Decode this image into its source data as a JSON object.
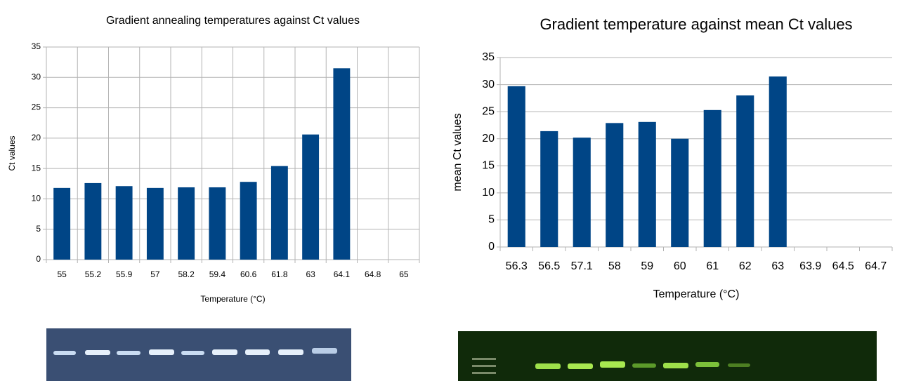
{
  "chart_data": [
    {
      "type": "bar",
      "title": "Gradient annealing temperatures against Ct values",
      "x_label": "Temperature (°C)",
      "y_label": "Ct values",
      "categories": [
        "55",
        "55.2",
        "55.9",
        "57",
        "58.2",
        "59.4",
        "60.6",
        "61.8",
        "63",
        "64.1",
        "64.8",
        "65"
      ],
      "values": [
        11.8,
        12.6,
        12.1,
        11.8,
        11.9,
        11.9,
        12.8,
        15.4,
        20.6,
        31.5,
        null,
        null
      ],
      "color": "#004586",
      "ylim": [
        0,
        35
      ],
      "yticks": [
        0,
        5,
        10,
        15,
        20,
        25,
        30,
        35
      ],
      "grid": true
    },
    {
      "type": "bar",
      "title": "Gradient temperature against mean Ct values",
      "x_label": "Temperature (°C)",
      "y_label": "mean Ct values",
      "categories": [
        "56.3",
        "56.5",
        "57.1",
        "58",
        "59",
        "60",
        "61",
        "62",
        "63",
        "63.9",
        "64.5",
        "64.7"
      ],
      "values": [
        29.7,
        21.4,
        20.2,
        22.9,
        23.1,
        20.0,
        25.3,
        28.0,
        31.5,
        null,
        null,
        null
      ],
      "color": "#004586",
      "ylim": [
        0,
        35
      ],
      "yticks": [
        0,
        5,
        10,
        15,
        20,
        25,
        30,
        35
      ],
      "grid": true
    }
  ]
}
